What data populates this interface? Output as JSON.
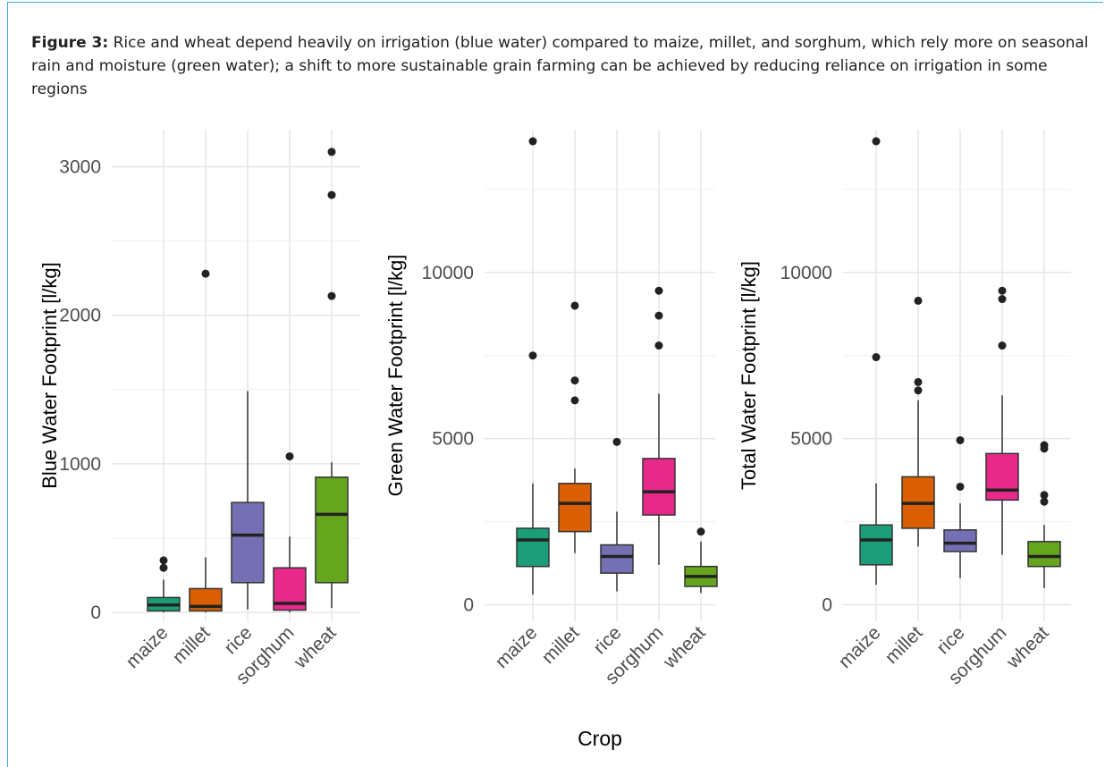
{
  "caption": {
    "label": "Figure 3:",
    "text": " Rice and wheat depend heavily on irrigation (blue water) compared to maize, millet, and sorghum, which rely more on seasonal rain and moisture (green water); a shift to more sustainable grain farming can be achieved by reducing reliance on irrigation in some regions"
  },
  "colors": {
    "maize": "#1b9e77",
    "millet": "#d95f02",
    "rice": "#7570b3",
    "sorghum": "#e7298a",
    "wheat": "#66a61e"
  },
  "chart_data": [
    {
      "type": "box",
      "ylabel": "Blue Water Footprint [l/kg]",
      "xlabel": "",
      "categories": [
        "maize",
        "millet",
        "rice",
        "sorghum",
        "wheat"
      ],
      "ylim": [
        -60,
        3250
      ],
      "yticks": [
        0,
        1000,
        2000,
        3000
      ],
      "grid": true,
      "boxes": [
        {
          "q1": 10,
          "median": 50,
          "q3": 100,
          "whisker_low": 0,
          "whisker_high": 220,
          "outliers": [
            300,
            350
          ]
        },
        {
          "q1": 10,
          "median": 40,
          "q3": 160,
          "whisker_low": 0,
          "whisker_high": 370,
          "outliers": [
            2280
          ]
        },
        {
          "q1": 200,
          "median": 520,
          "q3": 740,
          "whisker_low": 20,
          "whisker_high": 1490,
          "outliers": []
        },
        {
          "q1": 15,
          "median": 60,
          "q3": 300,
          "whisker_low": 0,
          "whisker_high": 510,
          "outliers": [
            1050
          ]
        },
        {
          "q1": 200,
          "median": 660,
          "q3": 910,
          "whisker_low": 30,
          "whisker_high": 1010,
          "outliers": [
            2130,
            2810,
            3100
          ]
        }
      ]
    },
    {
      "type": "box",
      "ylabel": "Green Water Footprint [l/kg]",
      "xlabel": "Crop",
      "categories": [
        "maize",
        "millet",
        "rice",
        "sorghum",
        "wheat"
      ],
      "ylim": [
        -500,
        14300
      ],
      "yticks": [
        0,
        5000,
        10000
      ],
      "grid": true,
      "boxes": [
        {
          "q1": 1150,
          "median": 1950,
          "q3": 2300,
          "whisker_low": 300,
          "whisker_high": 3650,
          "outliers": [
            7500,
            13950
          ]
        },
        {
          "q1": 2200,
          "median": 3050,
          "q3": 3650,
          "whisker_low": 1550,
          "whisker_high": 4100,
          "outliers": [
            6150,
            6750,
            9000
          ]
        },
        {
          "q1": 950,
          "median": 1450,
          "q3": 1800,
          "whisker_low": 400,
          "whisker_high": 2800,
          "outliers": [
            4900
          ]
        },
        {
          "q1": 2700,
          "median": 3400,
          "q3": 4400,
          "whisker_low": 1200,
          "whisker_high": 6350,
          "outliers": [
            7800,
            8700,
            9450
          ]
        },
        {
          "q1": 550,
          "median": 850,
          "q3": 1150,
          "whisker_low": 350,
          "whisker_high": 1900,
          "outliers": [
            2200
          ]
        }
      ]
    },
    {
      "type": "box",
      "ylabel": "Total Water Footprint [l/kg]",
      "xlabel": "",
      "categories": [
        "maize",
        "millet",
        "rice",
        "sorghum",
        "wheat"
      ],
      "ylim": [
        -500,
        14300
      ],
      "yticks": [
        0,
        5000,
        10000
      ],
      "grid": true,
      "boxes": [
        {
          "q1": 1200,
          "median": 1950,
          "q3": 2400,
          "whisker_low": 600,
          "whisker_high": 3650,
          "outliers": [
            7450,
            13950
          ]
        },
        {
          "q1": 2300,
          "median": 3050,
          "q3": 3850,
          "whisker_low": 1750,
          "whisker_high": 6150,
          "outliers": [
            6450,
            6700,
            9150
          ]
        },
        {
          "q1": 1600,
          "median": 1850,
          "q3": 2250,
          "whisker_low": 800,
          "whisker_high": 3050,
          "outliers": [
            3550,
            4950
          ]
        },
        {
          "q1": 3150,
          "median": 3450,
          "q3": 4550,
          "whisker_low": 1500,
          "whisker_high": 6300,
          "outliers": [
            7800,
            9200,
            9450
          ]
        },
        {
          "q1": 1150,
          "median": 1450,
          "q3": 1900,
          "whisker_low": 500,
          "whisker_high": 2400,
          "outliers": [
            3100,
            3300,
            4700,
            4800
          ]
        }
      ]
    }
  ]
}
